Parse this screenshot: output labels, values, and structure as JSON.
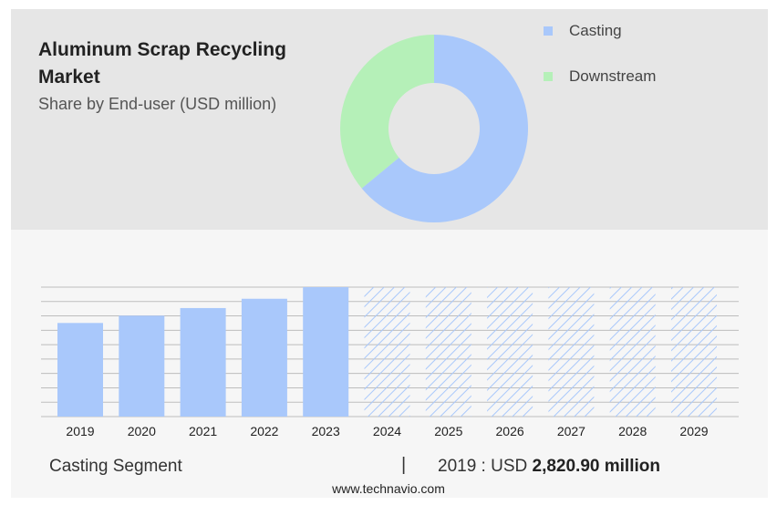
{
  "header": {
    "title": "Aluminum Scrap Recycling Market",
    "subtitle": "Share by End-user (USD million)"
  },
  "colors": {
    "casting": "#a9c8fb",
    "downstream": "#b5f0b8",
    "hatch": "#a9c8fb",
    "grid": "#bdbdbd"
  },
  "chart_data": [
    {
      "type": "pie",
      "donut": true,
      "title": "Share by End-user (USD million)",
      "legend_position": "top-right",
      "slices": [
        {
          "name": "Casting",
          "share": 0.64
        },
        {
          "name": "Downstream",
          "share": 0.36
        }
      ]
    },
    {
      "type": "bar",
      "categories": [
        "2019",
        "2020",
        "2021",
        "2022",
        "2023",
        "2024",
        "2025",
        "2026",
        "2027",
        "2028",
        "2029"
      ],
      "values": [
        2820.9,
        3040,
        3270,
        3550,
        3900,
        null,
        null,
        null,
        null,
        null,
        null
      ],
      "forecast_categories": [
        "2024",
        "2025",
        "2026",
        "2027",
        "2028",
        "2029"
      ],
      "ylim": [
        0,
        3900
      ],
      "grid": true,
      "series_name": "Casting Segment"
    }
  ],
  "footer": {
    "segment_label": "Casting Segment",
    "separator": "|",
    "year": "2019",
    "value_prefix": " : USD ",
    "value": "2,820.90 million"
  },
  "source": "www.technavio.com"
}
